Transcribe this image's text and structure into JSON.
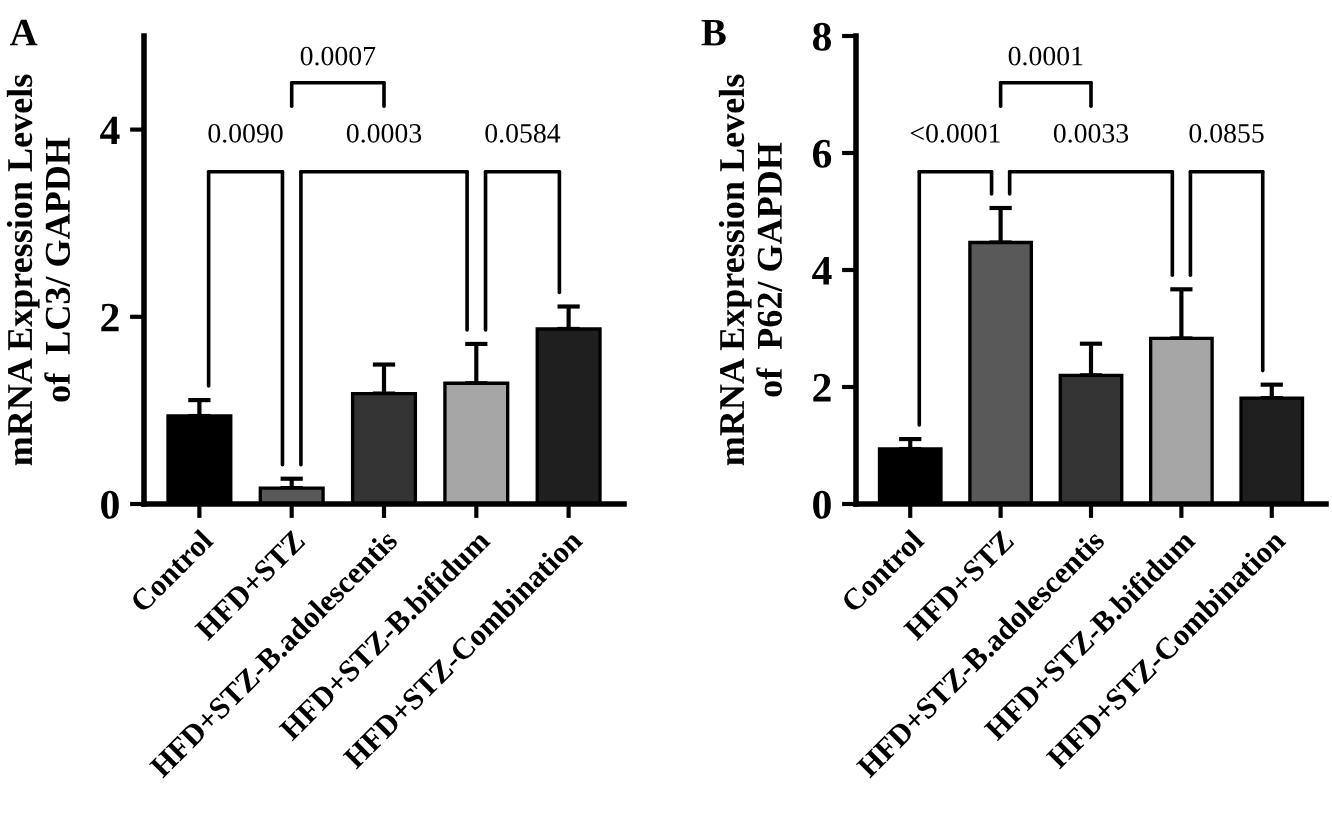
{
  "chart_data": [
    {
      "type": "bar",
      "title": "A",
      "ylabel": "mRNA Expression Levels\nof  LC3/ GAPDH",
      "categories": [
        "Control",
        "HFD+STZ",
        "HFD+STZ-B.adolescentis",
        "HFD+STZ-B.bifidum",
        "HFD+STZ-Combination"
      ],
      "values": [
        0.94,
        0.17,
        1.18,
        1.29,
        1.87
      ],
      "errors": [
        0.17,
        0.1,
        0.31,
        0.42,
        0.24
      ],
      "colors": [
        "#000000",
        "#595959",
        "#333333",
        "#a6a6a6",
        "#1f1f1f"
      ],
      "ylim": [
        0,
        5
      ],
      "yticks": [
        0,
        2,
        4
      ],
      "annotations": [
        "0.0007",
        "0.0090",
        "0.0003",
        "0.0584"
      ]
    },
    {
      "type": "bar",
      "title": "B",
      "ylabel": "mRNA Expression Levels\nof  P62/ GAPDH",
      "categories": [
        "Control",
        "HFD+STZ",
        "HFD+STZ-B.adolescentis",
        "HFD+STZ-B.bifidum",
        "HFD+STZ-Combination"
      ],
      "values": [
        0.94,
        4.47,
        2.2,
        2.83,
        1.81
      ],
      "errors": [
        0.17,
        0.59,
        0.54,
        0.84,
        0.23
      ],
      "colors": [
        "#000000",
        "#595959",
        "#333333",
        "#a6a6a6",
        "#1f1f1f"
      ],
      "ylim": [
        0,
        8
      ],
      "yticks": [
        0,
        2,
        4,
        6,
        8
      ],
      "annotations": [
        "0.0001",
        "<0.0001",
        "0.0033",
        "0.0855"
      ]
    }
  ]
}
